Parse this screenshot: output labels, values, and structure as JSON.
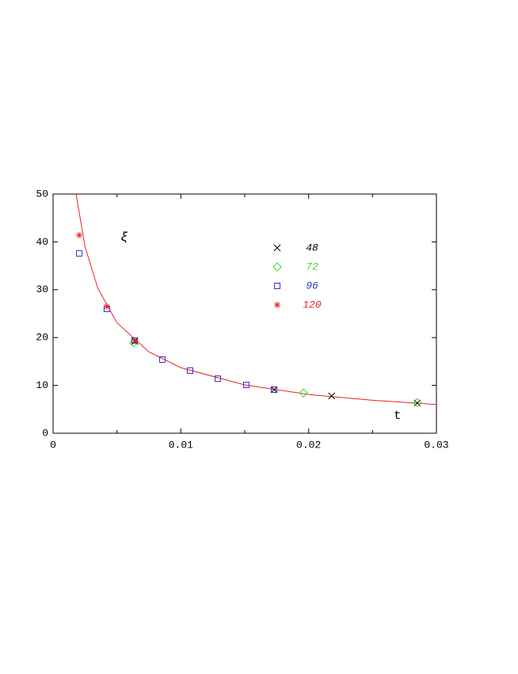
{
  "chart_data": {
    "type": "scatter",
    "x_label": "t",
    "y_label": "ξ",
    "xlim": [
      0,
      0.03
    ],
    "ylim": [
      0,
      50
    ],
    "xticks": [
      0,
      0.01,
      0.02,
      0.03
    ],
    "xminorticks": [
      0.005,
      0.015,
      0.025
    ],
    "yticks": [
      0,
      10,
      20,
      30,
      40,
      50
    ],
    "series": [
      {
        "name": "48",
        "color": "#000000",
        "marker": "x",
        "x": [
          0.0064,
          0.0173,
          0.0218,
          0.0285
        ],
        "values": [
          19.2,
          9.1,
          7.8,
          6.3
        ]
      },
      {
        "name": "72",
        "color": "#33dd33",
        "marker": "diamond",
        "x": [
          0.0063,
          0.0196,
          0.0285
        ],
        "values": [
          18.9,
          8.4,
          6.4
        ]
      },
      {
        "name": "96",
        "color": "#3333cc",
        "marker": "square",
        "x": [
          0.00205,
          0.00421,
          0.00638,
          0.00855,
          0.01072,
          0.01289,
          0.01512,
          0.01729
        ],
        "values": [
          37.6,
          26.0,
          19.4,
          15.4,
          13.1,
          11.4,
          10.1,
          9.1
        ]
      },
      {
        "name": "120",
        "color": "#ee2222",
        "marker": "star",
        "x": [
          0.00205,
          0.00421,
          0.0064
        ],
        "values": [
          41.4,
          26.5,
          19.4
        ]
      }
    ],
    "fit": {
      "color": "#ee2222",
      "x": [
        0.0018,
        0.0025,
        0.0035,
        0.005,
        0.0075,
        0.01,
        0.015,
        0.02,
        0.025,
        0.03
      ],
      "values": [
        50,
        39.0,
        30.3,
        23.1,
        17.0,
        13.7,
        10.1,
        8.1,
        6.9,
        6.0
      ]
    }
  }
}
